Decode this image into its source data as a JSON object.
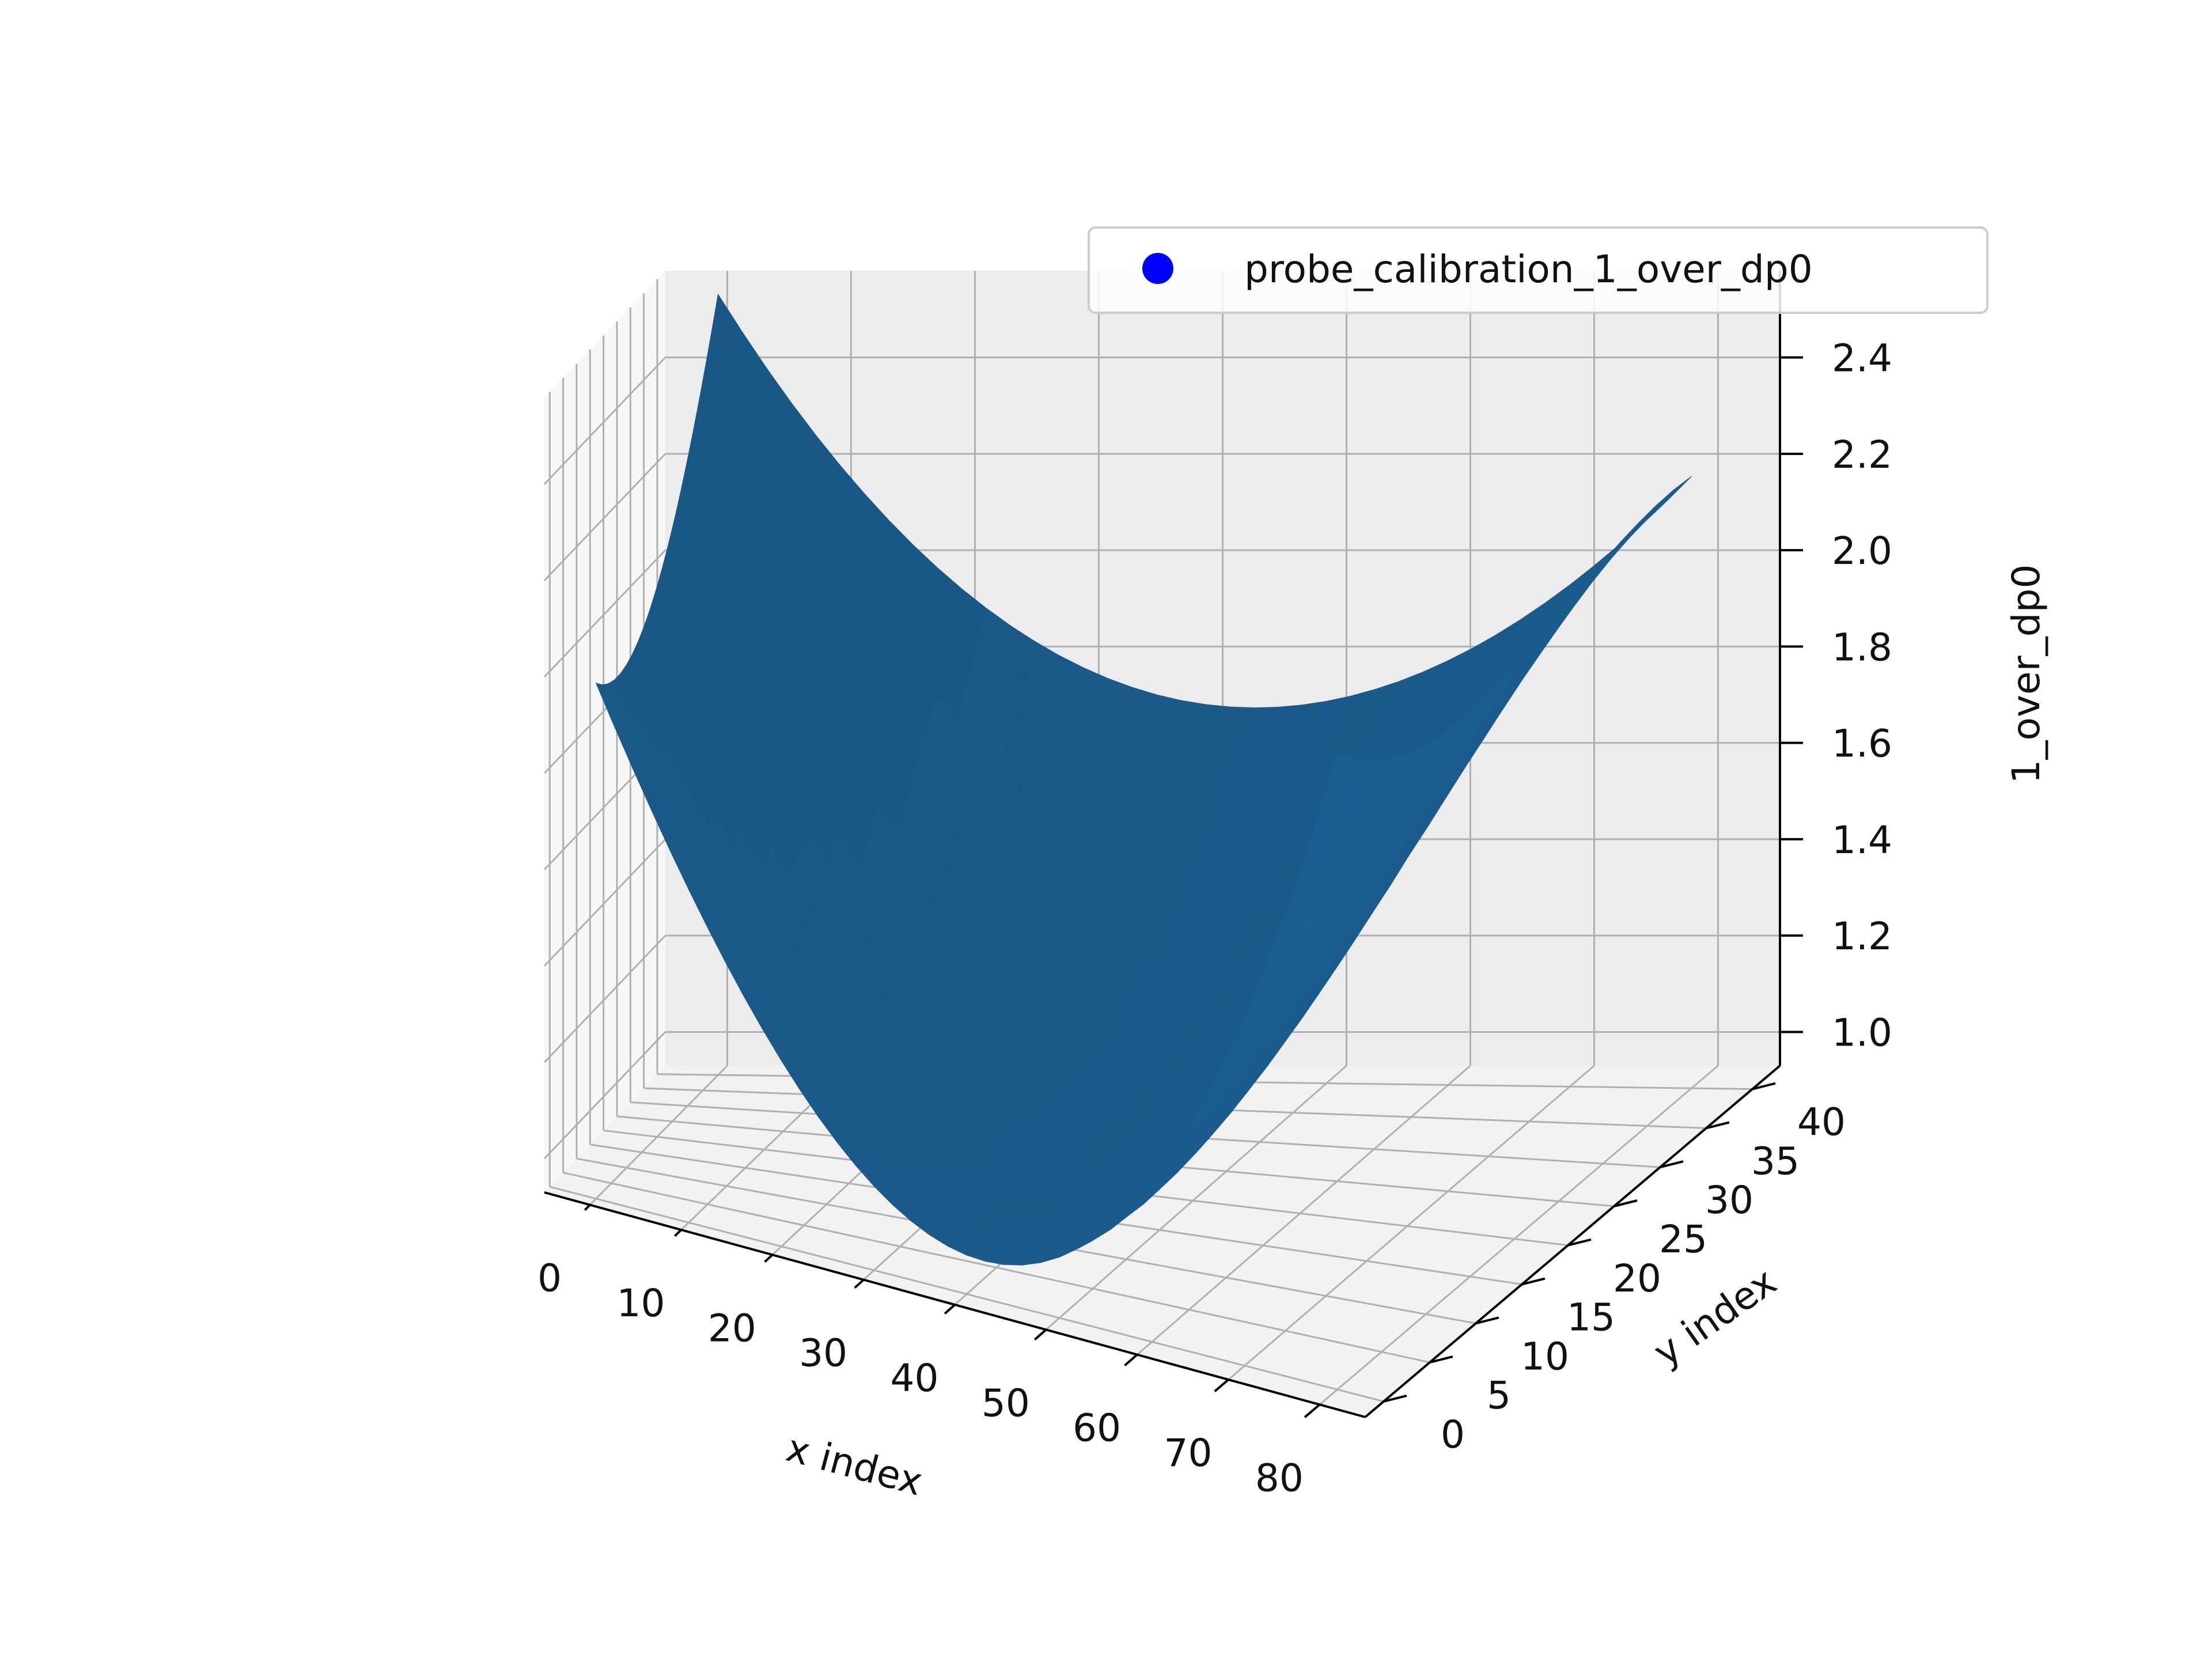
{
  "chart_data": {
    "type": "surface",
    "xlabel": "x index",
    "ylabel": "y index",
    "zlabel": "1_over_dp0",
    "xlim": [
      -5,
      85
    ],
    "ylim": [
      -2,
      43
    ],
    "zlim": [
      0.93,
      2.58
    ],
    "x_ticks": [
      "0",
      "10",
      "20",
      "30",
      "40",
      "50",
      "60",
      "70",
      "80"
    ],
    "y_ticks": [
      "0",
      "5",
      "10",
      "15",
      "20",
      "25",
      "30",
      "35",
      "40"
    ],
    "z_ticks": [
      "1.0",
      "1.2",
      "1.4",
      "1.6",
      "1.8",
      "2.0",
      "2.2",
      "2.4"
    ],
    "x_tick_values": [
      0,
      10,
      20,
      30,
      40,
      50,
      60,
      70,
      80
    ],
    "y_tick_values": [
      0,
      5,
      10,
      15,
      20,
      25,
      30,
      35,
      40
    ],
    "z_tick_values": [
      1.0,
      1.2,
      1.4,
      1.6,
      1.8,
      2.0,
      2.2,
      2.4
    ],
    "grid": true,
    "legend": {
      "position": "top-right",
      "entries": [
        {
          "label": "probe_calibration_1_over_dp0",
          "marker": "circle",
          "color": "#0000ff"
        }
      ]
    },
    "series": [
      {
        "name": "probe_calibration_1_over_dp0",
        "x_range": [
          0,
          80
        ],
        "y_range": [
          0,
          40
        ],
        "corners": {
          "x0_y0": 2.0,
          "x80_y0": 2.25,
          "x0_y40": 2.55,
          "x80_y40": 2.2
        },
        "minimum": {
          "x": 42,
          "y": 3,
          "z": 1.0
        },
        "color": "#1a5a8a"
      }
    ]
  }
}
